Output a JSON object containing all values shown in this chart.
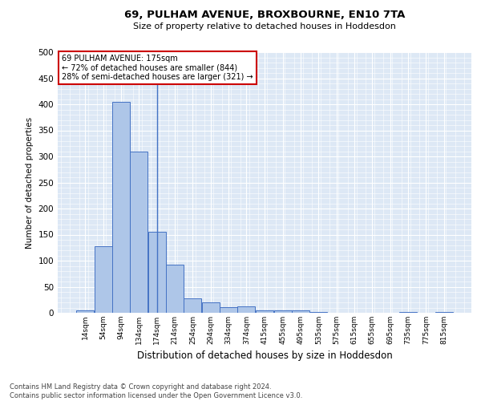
{
  "title": "69, PULHAM AVENUE, BROXBOURNE, EN10 7TA",
  "subtitle": "Size of property relative to detached houses in Hoddesdon",
  "xlabel": "Distribution of detached houses by size in Hoddesdon",
  "ylabel": "Number of detached properties",
  "footer_line1": "Contains HM Land Registry data © Crown copyright and database right 2024.",
  "footer_line2": "Contains public sector information licensed under the Open Government Licence v3.0.",
  "annotation_title": "69 PULHAM AVENUE: 175sqm",
  "annotation_line1": "← 72% of detached houses are smaller (844)",
  "annotation_line2": "28% of semi-detached houses are larger (321) →",
  "property_size": 175,
  "bar_labels": [
    "14sqm",
    "54sqm",
    "94sqm",
    "134sqm",
    "174sqm",
    "214sqm",
    "254sqm",
    "294sqm",
    "334sqm",
    "374sqm",
    "415sqm",
    "455sqm",
    "495sqm",
    "535sqm",
    "575sqm",
    "615sqm",
    "655sqm",
    "695sqm",
    "735sqm",
    "775sqm",
    "815sqm"
  ],
  "bar_values": [
    5,
    128,
    405,
    310,
    155,
    93,
    27,
    20,
    11,
    12,
    4,
    5,
    5,
    1,
    0,
    0,
    0,
    0,
    1,
    0,
    1
  ],
  "bar_centers": [
    14,
    54,
    94,
    134,
    174,
    214,
    254,
    294,
    334,
    374,
    415,
    455,
    495,
    535,
    575,
    615,
    655,
    695,
    735,
    775,
    815
  ],
  "bin_width": 40,
  "bar_color": "#aec6e8",
  "bar_edge_color": "#4472c4",
  "annotation_box_color": "#ffffff",
  "annotation_border_color": "#cc0000",
  "property_line_color": "#4472c4",
  "background_color": "#ffffff",
  "plot_bg_color": "#dde8f5",
  "grid_color": "#ffffff",
  "ylim": [
    0,
    500
  ],
  "yticks": [
    0,
    50,
    100,
    150,
    200,
    250,
    300,
    350,
    400,
    450,
    500
  ]
}
